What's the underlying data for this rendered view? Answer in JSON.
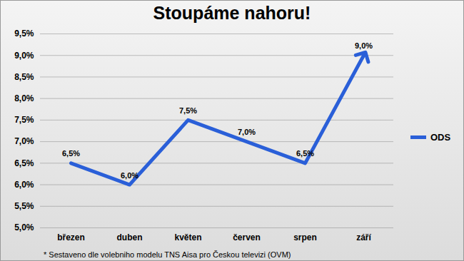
{
  "chart_data": {
    "type": "line",
    "title": "Stoupáme nahoru!",
    "categories": [
      "březen",
      "duben",
      "květen",
      "červen",
      "srpen",
      "září"
    ],
    "series": [
      {
        "name": "ODS",
        "color": "#2a5fd8",
        "values": [
          6.5,
          6.0,
          7.5,
          7.0,
          6.5,
          9.0
        ],
        "value_labels": [
          "6,5%",
          "6,0%",
          "7,5%",
          "7,0%",
          "6,5%",
          "9,0%"
        ],
        "marker": "arrow"
      }
    ],
    "ylim": [
      5.0,
      9.5
    ],
    "yticks": [
      {
        "value": 5.0,
        "label": "5,0%"
      },
      {
        "value": 5.5,
        "label": "5,5%"
      },
      {
        "value": 6.0,
        "label": "6,0%"
      },
      {
        "value": 6.5,
        "label": "6,5%"
      },
      {
        "value": 7.0,
        "label": "7,0%"
      },
      {
        "value": 7.5,
        "label": "7,5%"
      },
      {
        "value": 8.0,
        "label": "8,0%"
      },
      {
        "value": 8.5,
        "label": "8,5%"
      },
      {
        "value": 9.0,
        "label": "9,0%"
      },
      {
        "value": 9.5,
        "label": "9,5%"
      }
    ],
    "grid": true,
    "data_labels": true,
    "legend": "right",
    "annotations": [
      "* Sestaveno dle volebniho modelu TNS Aisa pro Českou televizi (OVM)"
    ]
  }
}
